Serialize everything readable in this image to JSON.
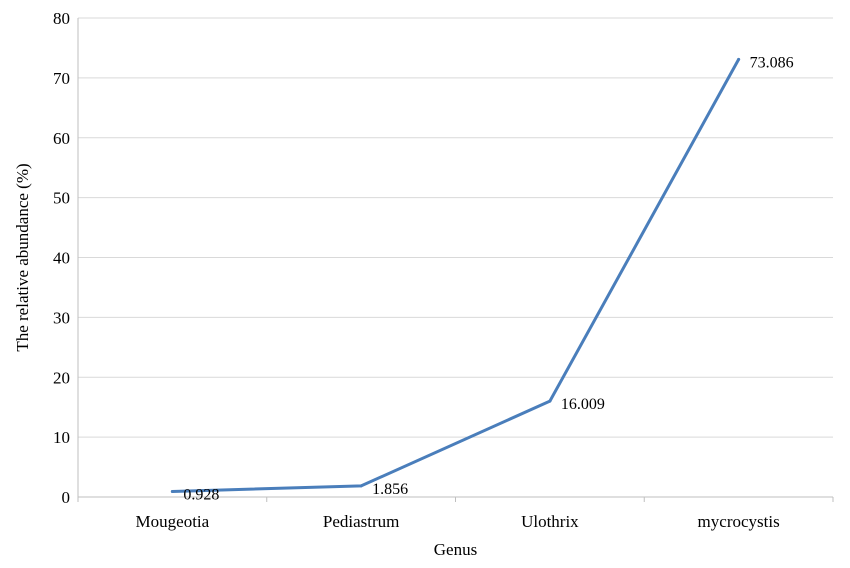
{
  "chart_data": {
    "type": "line",
    "title": "",
    "xlabel": "Genus",
    "ylabel": "The relative abundance (%)",
    "categories": [
      "Mougeotia",
      "Pediastrum",
      "Ulothrix",
      "mycrocystis"
    ],
    "series": [
      {
        "values": [
          0.928,
          1.856,
          16.009,
          73.086
        ],
        "data_labels": [
          "0.928",
          "1.856",
          "16.009",
          "73.086"
        ],
        "color": "#4a7ebb"
      }
    ],
    "ylim": [
      0,
      80
    ],
    "yticks": [
      0,
      10,
      20,
      30,
      40,
      50,
      60,
      70,
      80
    ],
    "grid": true,
    "legend": "none"
  }
}
